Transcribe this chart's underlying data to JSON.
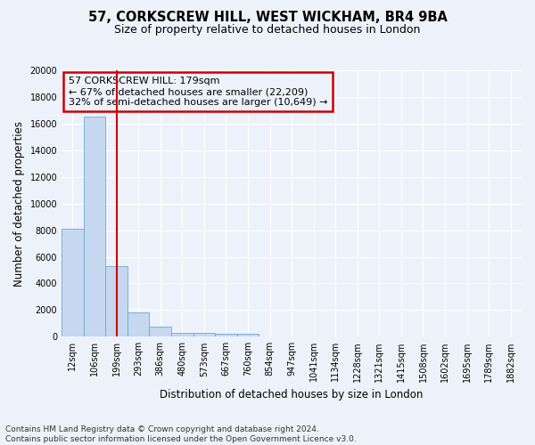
{
  "title": "57, CORKSCREW HILL, WEST WICKHAM, BR4 9BA",
  "subtitle": "Size of property relative to detached houses in London",
  "xlabel": "Distribution of detached houses by size in London",
  "ylabel": "Number of detached properties",
  "bar_labels": [
    "12sqm",
    "106sqm",
    "199sqm",
    "293sqm",
    "386sqm",
    "480sqm",
    "573sqm",
    "667sqm",
    "760sqm",
    "854sqm",
    "947sqm",
    "1041sqm",
    "1134sqm",
    "1228sqm",
    "1321sqm",
    "1415sqm",
    "1508sqm",
    "1602sqm",
    "1695sqm",
    "1789sqm",
    "1882sqm"
  ],
  "bar_values": [
    8100,
    16500,
    5300,
    1850,
    750,
    320,
    270,
    220,
    220,
    50,
    0,
    0,
    0,
    0,
    0,
    0,
    0,
    0,
    0,
    0,
    0
  ],
  "bar_color": "#c5d8f0",
  "bar_edge_color": "#6aaad4",
  "vline_x_index": 2,
  "vline_color": "#cc0000",
  "annotation_line1": "57 CORKSCREW HILL: 179sqm",
  "annotation_line2": "← 67% of detached houses are smaller (22,209)",
  "annotation_line3": "32% of semi-detached houses are larger (10,649) →",
  "annotation_box_color": "#cc0000",
  "annotation_text_color": "#000000",
  "ylim": [
    0,
    20000
  ],
  "yticks": [
    0,
    2000,
    4000,
    6000,
    8000,
    10000,
    12000,
    14000,
    16000,
    18000,
    20000
  ],
  "footer_line1": "Contains HM Land Registry data © Crown copyright and database right 2024.",
  "footer_line2": "Contains public sector information licensed under the Open Government Licence v3.0.",
  "background_color": "#edf2fa",
  "grid_color": "#ffffff",
  "title_fontsize": 10.5,
  "subtitle_fontsize": 9,
  "ylabel_fontsize": 8.5,
  "xlabel_fontsize": 8.5,
  "tick_fontsize": 7,
  "annotation_fontsize": 8,
  "footer_fontsize": 6.5
}
